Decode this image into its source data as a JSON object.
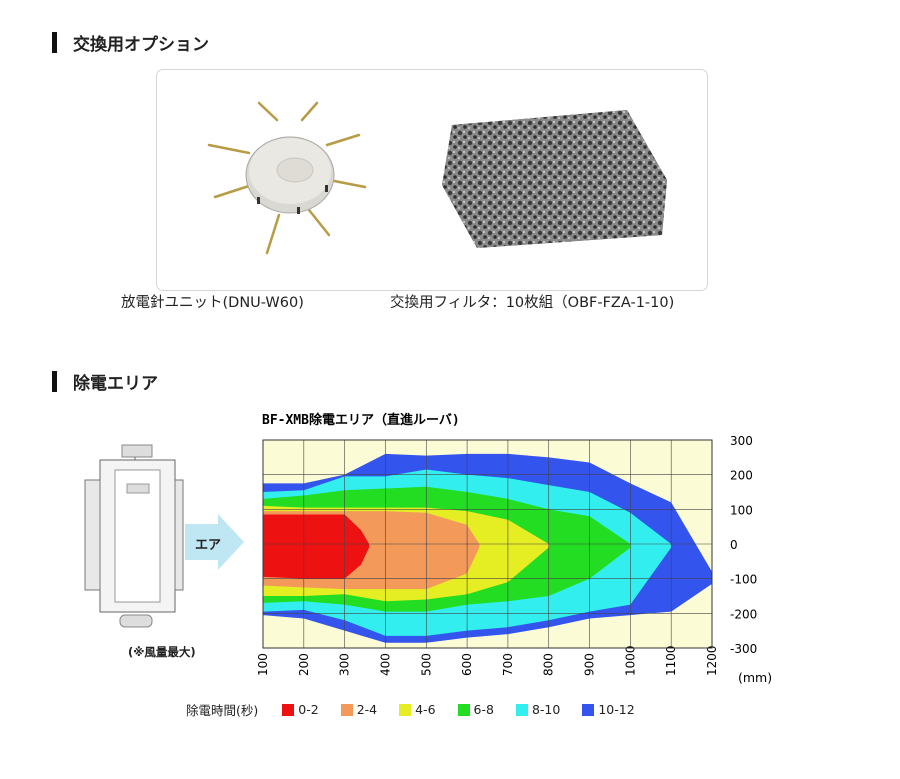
{
  "sections": {
    "options_title": "交換用オプション",
    "area_title": "除電エリア"
  },
  "options": {
    "unit_caption": "放電針ユニット(DNU-W60)",
    "filter_caption": "交換用フィルタ：10枚組（OBF-FZA-1-10)"
  },
  "device": {
    "air_label": "エア",
    "note": "(※風量最大)"
  },
  "chart_data": {
    "type": "area",
    "title": "BF-XMB除電エリア（直進ルーバ)",
    "xlabel": "(mm)",
    "ylabel": "",
    "x_ticks": [
      100,
      200,
      300,
      400,
      500,
      600,
      700,
      800,
      900,
      1000,
      1100,
      1200
    ],
    "y_ticks": [
      300,
      200,
      100,
      0,
      -100,
      -200,
      -300
    ],
    "xlim": [
      100,
      1200
    ],
    "ylim": [
      -300,
      300
    ],
    "legend_title": "除電時間(秒)",
    "series": [
      {
        "name": "10-12",
        "color": "#3355ee",
        "x": [
          100,
          200,
          300,
          400,
          500,
          600,
          700,
          800,
          900,
          1000,
          1100,
          1200
        ],
        "upper": [
          175,
          175,
          200,
          260,
          255,
          260,
          260,
          250,
          235,
          175,
          120,
          -80
        ],
        "lower": [
          -205,
          -215,
          -250,
          -285,
          -285,
          -270,
          -260,
          -240,
          -215,
          -205,
          -195,
          -115
        ]
      },
      {
        "name": "8-10",
        "color": "#33eeee",
        "x": [
          100,
          200,
          300,
          400,
          500,
          600,
          700,
          800,
          900,
          1000,
          1100
        ],
        "upper": [
          150,
          155,
          195,
          195,
          215,
          200,
          190,
          170,
          150,
          90,
          0
        ],
        "lower": [
          -195,
          -190,
          -220,
          -265,
          -265,
          -250,
          -240,
          -220,
          -195,
          -175,
          -10
        ]
      },
      {
        "name": "6-8",
        "color": "#22dd22",
        "x": [
          100,
          200,
          300,
          400,
          500,
          600,
          700,
          800,
          900,
          1000
        ],
        "upper": [
          130,
          140,
          155,
          160,
          165,
          150,
          130,
          100,
          80,
          0
        ],
        "lower": [
          -170,
          -165,
          -175,
          -195,
          -195,
          -175,
          -165,
          -150,
          -100,
          -10
        ]
      },
      {
        "name": "4-6",
        "color": "#e5ee22",
        "x": [
          100,
          200,
          300,
          400,
          500,
          600,
          700,
          800
        ],
        "upper": [
          110,
          105,
          105,
          105,
          105,
          95,
          70,
          0
        ],
        "lower": [
          -150,
          -150,
          -145,
          -165,
          -160,
          -145,
          -110,
          -10
        ]
      },
      {
        "name": "2-4",
        "color": "#f39a5a",
        "x": [
          100,
          200,
          300,
          400,
          500,
          600,
          630
        ],
        "upper": [
          95,
          95,
          95,
          95,
          90,
          55,
          0
        ],
        "lower": [
          -120,
          -125,
          -130,
          -130,
          -130,
          -85,
          -10
        ]
      },
      {
        "name": "0-2",
        "color": "#ee1111",
        "x": [
          100,
          200,
          300,
          340,
          360
        ],
        "upper": [
          85,
          85,
          85,
          40,
          0
        ],
        "lower": [
          -95,
          -100,
          -100,
          -60,
          -10
        ]
      }
    ]
  }
}
